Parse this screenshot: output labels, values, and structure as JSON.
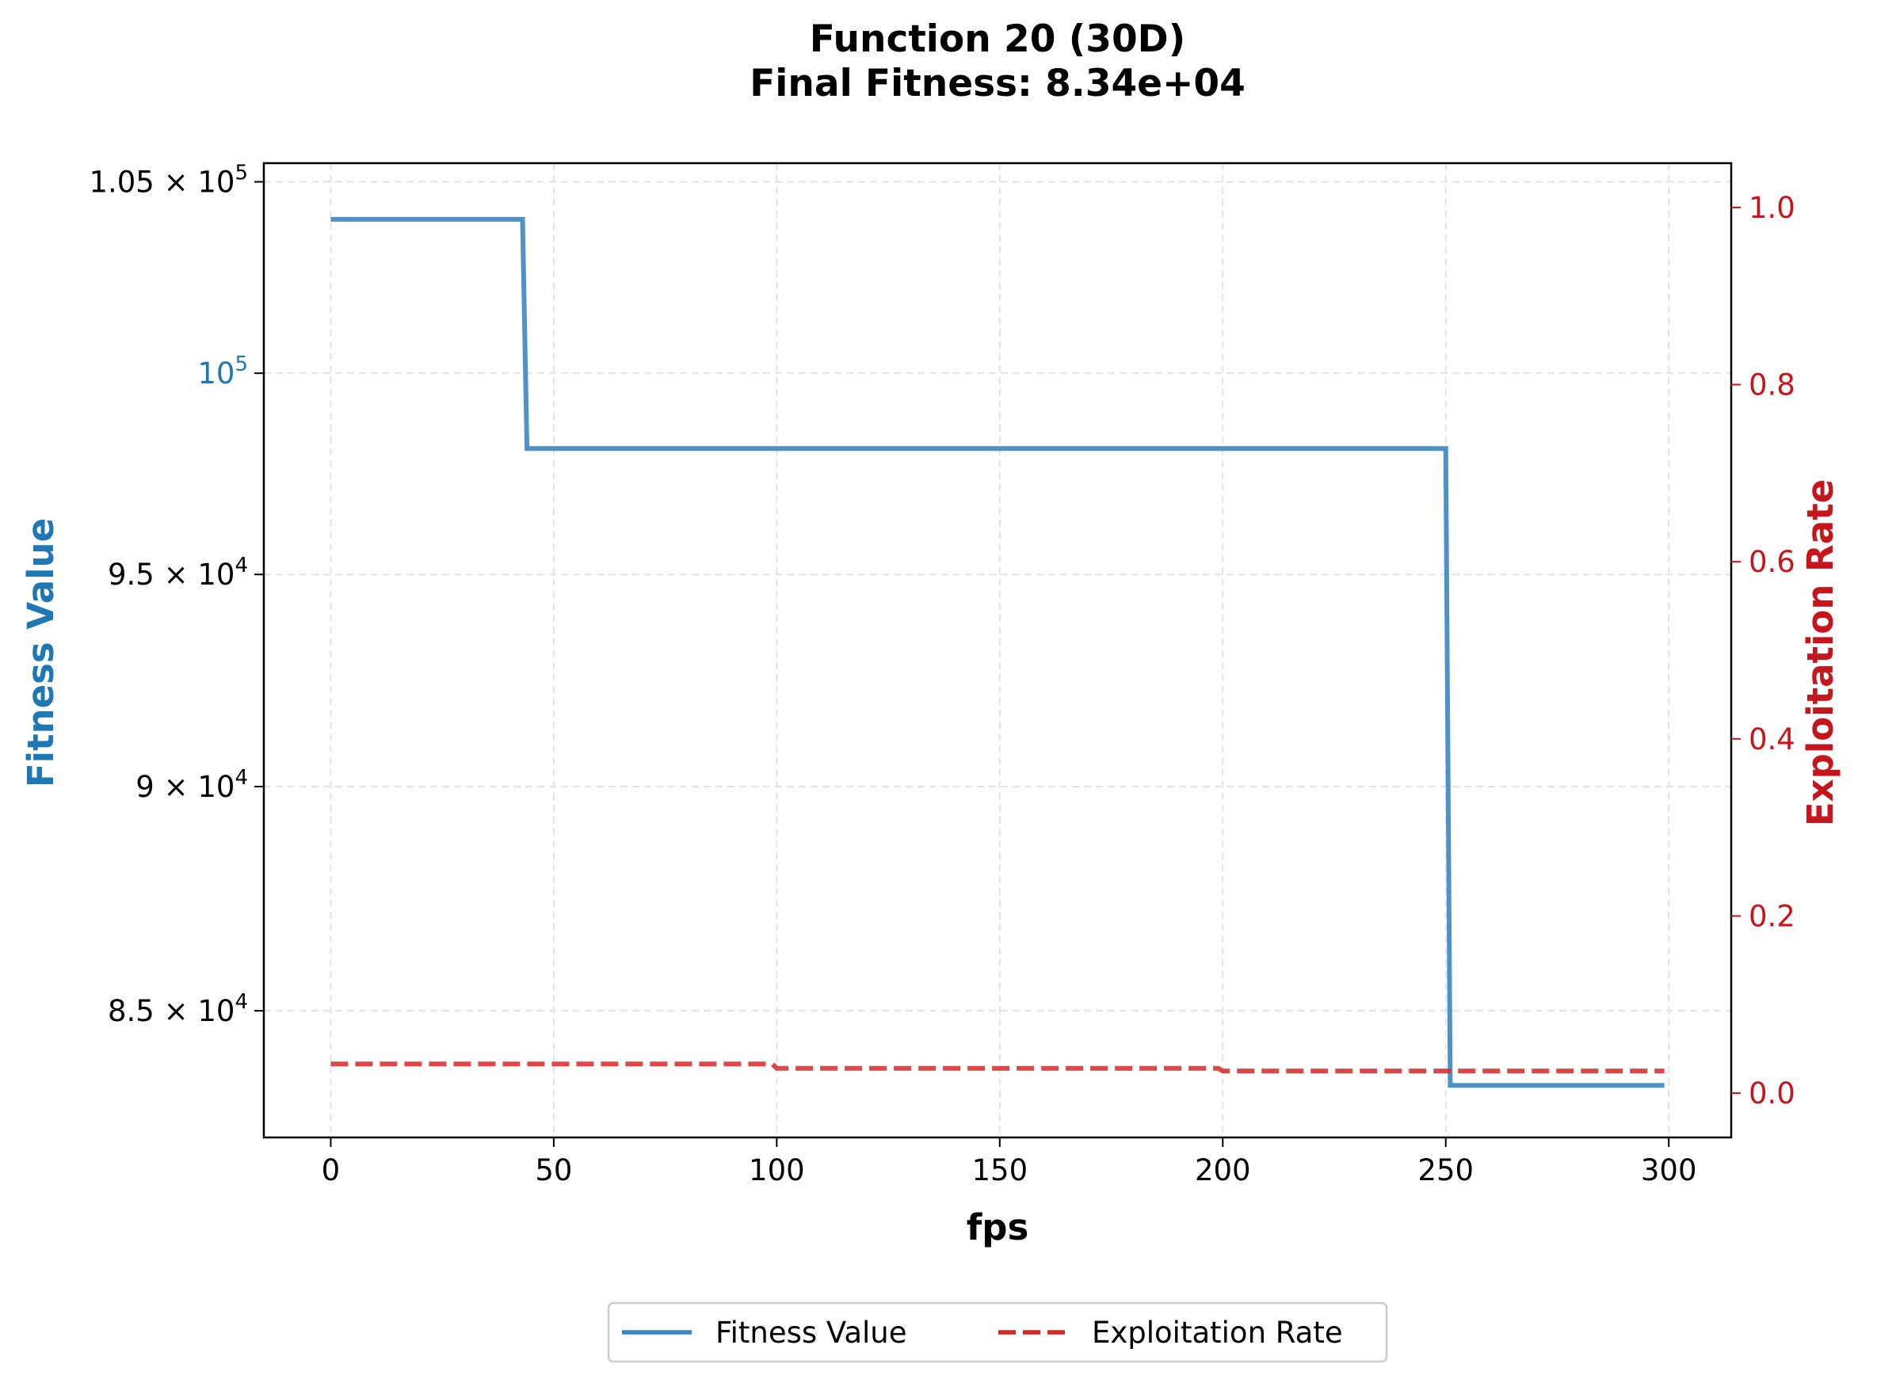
{
  "chart_data": {
    "type": "line",
    "title": "Function 20 (30D)",
    "subtitle": "Final Fitness: 8.34e+04",
    "xlabel": "fps",
    "ylabel_left": "Fitness Value",
    "ylabel_right": "Exploitation Rate",
    "xlim": [
      -15,
      314
    ],
    "ylim_left": [
      82300,
      105500
    ],
    "ylim_right": [
      -0.05,
      1.05
    ],
    "yscale_left": "log",
    "x_ticks": [
      "0",
      "50",
      "100",
      "150",
      "200",
      "250",
      "300"
    ],
    "y_left_ticks": [
      {
        "value": 105000,
        "base": "1.05",
        "exp": "5",
        "color": "#000000"
      },
      {
        "value": 100000,
        "base": "",
        "exp": "5",
        "color": "#1f77b4"
      },
      {
        "value": 95000,
        "base": "9.5",
        "exp": "4",
        "color": "#000000"
      },
      {
        "value": 90000,
        "base": "9",
        "exp": "4",
        "color": "#000000"
      },
      {
        "value": 85000,
        "base": "8.5",
        "exp": "4",
        "color": "#000000"
      }
    ],
    "y_right_ticks": [
      "0.0",
      "0.2",
      "0.4",
      "0.6",
      "0.8",
      "1.0"
    ],
    "grid": true,
    "legend_position": "bottom-center",
    "series": [
      {
        "name": "Fitness Value",
        "axis": "left",
        "color": "#3a86c2",
        "style": "solid",
        "x": [
          0,
          43,
          44,
          250,
          251,
          299
        ],
        "y": [
          104000,
          104000,
          98100,
          98100,
          83400,
          83400
        ]
      },
      {
        "name": "Exploitation Rate",
        "axis": "right",
        "color": "#d62728",
        "style": "dashed",
        "x": [
          0,
          99,
          100,
          199,
          200,
          299
        ],
        "y": [
          0.033,
          0.033,
          0.028,
          0.028,
          0.025,
          0.025
        ]
      }
    ]
  }
}
